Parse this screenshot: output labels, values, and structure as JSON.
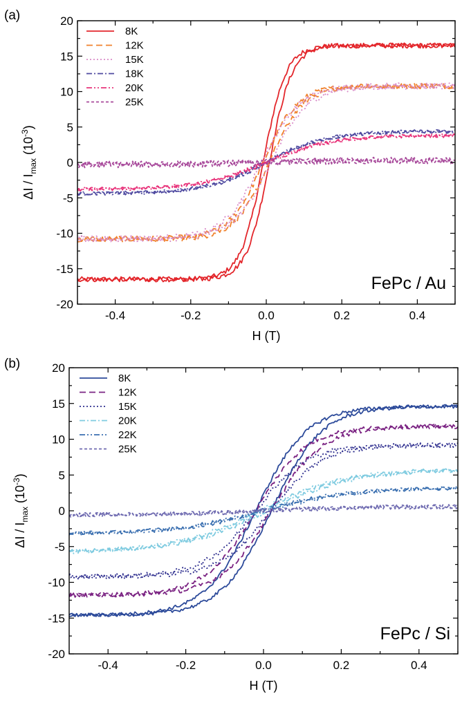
{
  "chart_data": [
    {
      "type": "line",
      "panel_label": "(a)",
      "annotation": "FePc / Au",
      "xlabel": "H (T)",
      "ylabel": {
        "pre": "ΔI / I",
        "sub": "max",
        "mid": " (10",
        "sup": "-3",
        "post": ")"
      },
      "xlim": [
        -0.5,
        0.5
      ],
      "ylim": [
        -20,
        20
      ],
      "x_ticks": [
        -0.4,
        -0.2,
        0.0,
        0.2,
        0.4
      ],
      "x_tick_labels": [
        "-0.4",
        "-0.2",
        "0.0",
        "0.2",
        "0.4"
      ],
      "y_ticks": [
        -20,
        -15,
        -10,
        -5,
        0,
        5,
        10,
        15,
        20
      ],
      "y_tick_labels": [
        "-20",
        "-15",
        "-10",
        "-5",
        "0",
        "5",
        "10",
        "15",
        "20"
      ],
      "grid": false,
      "legend_position": "top-left",
      "series": [
        {
          "name": "8K",
          "color": "#e3262b",
          "dash": "solid",
          "saturation": 16.5,
          "width": 0.06,
          "coercive": 0.008,
          "noise": 0.35
        },
        {
          "name": "12K",
          "color": "#f0822d",
          "dash": "dash",
          "saturation": 10.8,
          "width": 0.09,
          "coercive": 0.008,
          "noise": 0.4
        },
        {
          "name": "15K",
          "color": "#d98bc8",
          "dash": "dot",
          "saturation": 10.8,
          "width": 0.1,
          "coercive": 0.012,
          "noise": 0.45
        },
        {
          "name": "18K",
          "color": "#4f4aa0",
          "dash": "dashdot",
          "saturation": 4.4,
          "width": 0.16,
          "coercive": 0.004,
          "noise": 0.25
        },
        {
          "name": "20K",
          "color": "#e8337a",
          "dash": "dashdotdot",
          "saturation": 3.8,
          "width": 0.17,
          "coercive": 0.004,
          "noise": 0.25
        },
        {
          "name": "25K",
          "color": "#a7489a",
          "dash": "shortdash",
          "saturation": 0.3,
          "width": 0.2,
          "coercive": 0.0,
          "noise": 0.45
        }
      ]
    },
    {
      "type": "line",
      "panel_label": "(b)",
      "annotation": "FePc / Si",
      "xlabel": "H (T)",
      "ylabel": {
        "pre": "ΔI / I",
        "sub": "max",
        "mid": " (10",
        "sup": "-3",
        "post": ")"
      },
      "xlim": [
        -0.5,
        0.5
      ],
      "ylim": [
        -20,
        20
      ],
      "x_ticks": [
        -0.4,
        -0.2,
        0.0,
        0.2,
        0.4
      ],
      "x_tick_labels": [
        "-0.4",
        "-0.2",
        "0.0",
        "0.2",
        "0.4"
      ],
      "y_ticks": [
        -20,
        -15,
        -10,
        -5,
        0,
        5,
        10,
        15,
        20
      ],
      "y_tick_labels": [
        "-20",
        "-15",
        "-10",
        "-5",
        "0",
        "5",
        "10",
        "15",
        "20"
      ],
      "grid": false,
      "legend_position": "top-left",
      "series": [
        {
          "name": "8K",
          "color": "#2c4a9a",
          "dash": "solid",
          "saturation": 14.6,
          "width": 0.13,
          "coercive": 0.02,
          "noise": 0.25
        },
        {
          "name": "12K",
          "color": "#7a2282",
          "dash": "dash",
          "saturation": 11.8,
          "width": 0.13,
          "coercive": 0.02,
          "noise": 0.3
        },
        {
          "name": "15K",
          "color": "#2f2f8f",
          "dash": "dot",
          "saturation": 9.2,
          "width": 0.13,
          "coercive": 0.02,
          "noise": 0.35
        },
        {
          "name": "20K",
          "color": "#7fcbe0",
          "dash": "dashdot",
          "saturation": 5.8,
          "width": 0.22,
          "coercive": 0.01,
          "noise": 0.3
        },
        {
          "name": "22K",
          "color": "#3a6fb0",
          "dash": "dashdotdot",
          "saturation": 3.2,
          "width": 0.22,
          "coercive": 0.008,
          "noise": 0.25
        },
        {
          "name": "25K",
          "color": "#6e6ab0",
          "dash": "shortdash",
          "saturation": 0.6,
          "width": 0.25,
          "coercive": 0.0,
          "noise": 0.3
        }
      ]
    }
  ]
}
